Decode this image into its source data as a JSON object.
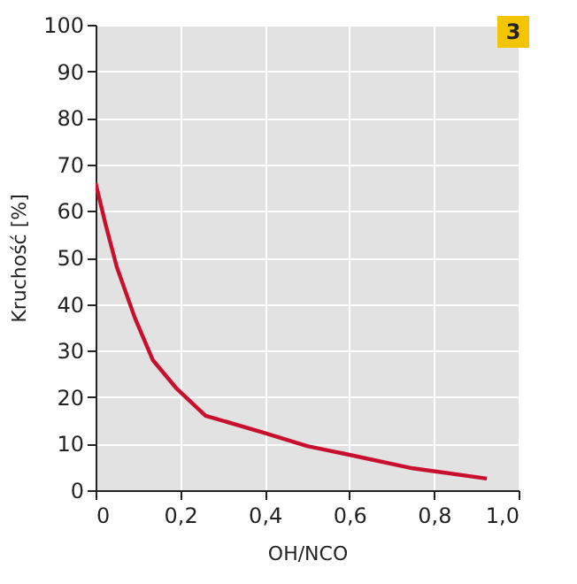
{
  "chart_data": {
    "type": "line",
    "xlabel": "OH/NCO",
    "ylabel": "Kruchość [%]",
    "annotations": [
      "3"
    ],
    "x": [
      0,
      0.024,
      0.05,
      0.093,
      0.135,
      0.19,
      0.26,
      0.4,
      0.5,
      0.6,
      0.75,
      0.925
    ],
    "series": [
      {
        "color": "#c8102e",
        "values": [
          66,
          57,
          48,
          37,
          28,
          22,
          16,
          12.3,
          9.5,
          7.6,
          4.7,
          2.5
        ]
      }
    ],
    "xlim": [
      0,
      1.0
    ],
    "ylim": [
      0,
      100
    ],
    "xticks": [
      0,
      {
        "value": 0.2,
        "label": "0,2"
      },
      {
        "value": 0.4,
        "label": "0,4"
      },
      {
        "value": 0.6,
        "label": "0,6"
      },
      {
        "value": 0.8,
        "label": "0,8"
      },
      {
        "value": 1.0,
        "label": "1,0"
      }
    ],
    "yticks": [
      0,
      10,
      20,
      30,
      40,
      50,
      60,
      70,
      80,
      90,
      100
    ],
    "grid": true,
    "marker": "none",
    "line_style": "solid"
  }
}
